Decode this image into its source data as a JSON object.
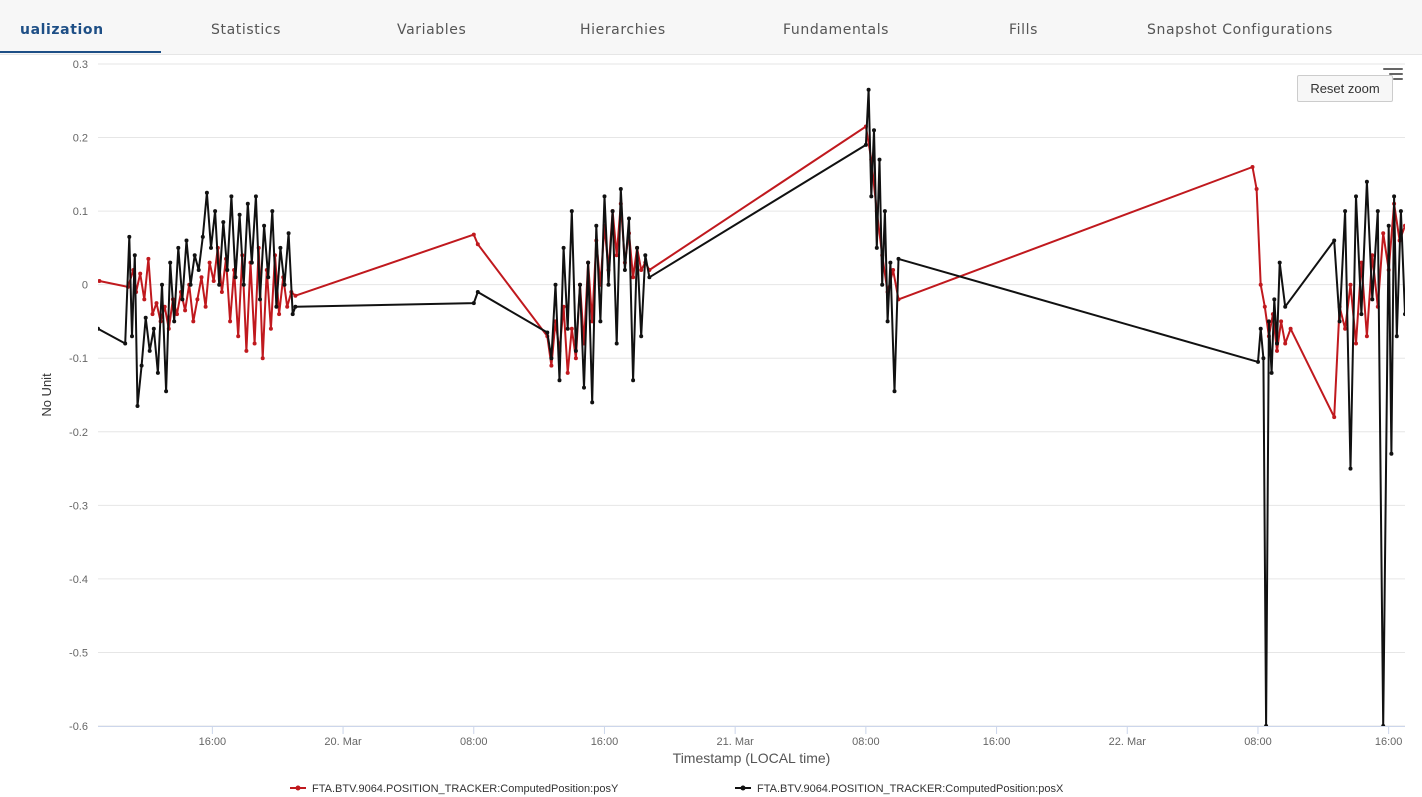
{
  "tabs": [
    {
      "label": "ualization",
      "active": true
    },
    {
      "label": "Statistics",
      "active": false
    },
    {
      "label": "Variables",
      "active": false
    },
    {
      "label": "Hierarchies",
      "active": false
    },
    {
      "label": "Fundamentals",
      "active": false
    },
    {
      "label": "Fills",
      "active": false
    },
    {
      "label": "Snapshot Configurations",
      "active": false
    }
  ],
  "toolbar": {
    "reset_zoom_label": "Reset zoom",
    "menu_icon": "hamburger-menu-icon"
  },
  "colors": {
    "accent": "#1e4f86",
    "series_y": "#c0191e",
    "series_x": "#111111",
    "grid": "#e6e6e6"
  },
  "chart_data": {
    "type": "line",
    "title": "",
    "xlabel": "Timestamp (LOCAL time)",
    "ylabel": "No Unit",
    "ylim": [
      -0.6,
      0.3
    ],
    "xlim": [
      "2021-03-19T09:00",
      "2021-03-22T17:00"
    ],
    "yticks": [
      "0.3",
      "0.2",
      "0.1",
      "0",
      "-0.1",
      "-0.2",
      "-0.3",
      "-0.4",
      "-0.5",
      "-0.6"
    ],
    "xticks": [
      "16:00",
      "20. Mar",
      "08:00",
      "16:00",
      "21. Mar",
      "08:00",
      "16:00",
      "22. Mar",
      "08:00",
      "16:00"
    ],
    "grid": true,
    "legend_position": "bottom",
    "series": [
      {
        "name": "FTA.BTV.9064.POSITION_TRACKER:ComputedPosition:posY",
        "color": "#c0191e",
        "x": [
          "2021-03-19T09:05",
          "2021-03-19T10:50",
          "2021-03-19T11:10",
          "2021-03-19T11:20",
          "2021-03-19T11:35",
          "2021-03-19T11:50",
          "2021-03-19T12:05",
          "2021-03-19T12:20",
          "2021-03-19T12:35",
          "2021-03-19T12:50",
          "2021-03-19T13:05",
          "2021-03-19T13:20",
          "2021-03-19T13:35",
          "2021-03-19T13:50",
          "2021-03-19T14:05",
          "2021-03-19T14:20",
          "2021-03-19T14:35",
          "2021-03-19T14:50",
          "2021-03-19T15:05",
          "2021-03-19T15:20",
          "2021-03-19T15:35",
          "2021-03-19T15:50",
          "2021-03-19T16:05",
          "2021-03-19T16:20",
          "2021-03-19T16:35",
          "2021-03-19T16:50",
          "2021-03-19T17:05",
          "2021-03-19T17:20",
          "2021-03-19T17:35",
          "2021-03-19T17:50",
          "2021-03-19T18:05",
          "2021-03-19T18:20",
          "2021-03-19T18:35",
          "2021-03-19T18:50",
          "2021-03-19T19:05",
          "2021-03-19T19:20",
          "2021-03-19T19:35",
          "2021-03-19T19:50",
          "2021-03-19T20:05",
          "2021-03-19T20:20",
          "2021-03-19T20:35",
          "2021-03-19T20:50",
          "2021-03-19T21:05",
          "2021-03-20T08:00",
          "2021-03-20T08:15",
          "2021-03-20T12:30",
          "2021-03-20T12:45",
          "2021-03-20T13:00",
          "2021-03-20T13:15",
          "2021-03-20T13:30",
          "2021-03-20T13:45",
          "2021-03-20T14:00",
          "2021-03-20T14:15",
          "2021-03-20T14:30",
          "2021-03-20T14:45",
          "2021-03-20T15:00",
          "2021-03-20T15:15",
          "2021-03-20T15:30",
          "2021-03-20T15:45",
          "2021-03-20T16:00",
          "2021-03-20T16:15",
          "2021-03-20T16:30",
          "2021-03-20T16:45",
          "2021-03-20T17:00",
          "2021-03-20T17:15",
          "2021-03-20T17:30",
          "2021-03-20T17:45",
          "2021-03-20T18:00",
          "2021-03-20T18:15",
          "2021-03-20T18:30",
          "2021-03-20T18:45",
          "2021-03-21T08:00",
          "2021-03-21T08:20",
          "2021-03-21T08:40",
          "2021-03-21T09:00",
          "2021-03-21T09:20",
          "2021-03-21T09:40",
          "2021-03-21T10:00",
          "2021-03-22T07:40",
          "2021-03-22T07:55",
          "2021-03-22T08:10",
          "2021-03-22T08:25",
          "2021-03-22T08:40",
          "2021-03-22T08:55",
          "2021-03-22T09:10",
          "2021-03-22T09:25",
          "2021-03-22T09:40",
          "2021-03-22T10:00",
          "2021-03-22T12:40",
          "2021-03-22T13:00",
          "2021-03-22T13:20",
          "2021-03-22T13:40",
          "2021-03-22T14:00",
          "2021-03-22T14:20",
          "2021-03-22T14:40",
          "2021-03-22T15:00",
          "2021-03-22T15:20",
          "2021-03-22T15:40",
          "2021-03-22T16:00",
          "2021-03-22T16:20",
          "2021-03-22T16:40",
          "2021-03-22T17:00"
        ],
        "y": [
          0.005,
          -0.003,
          0.02,
          -0.01,
          0.015,
          -0.02,
          0.035,
          -0.04,
          -0.025,
          -0.05,
          -0.03,
          -0.06,
          -0.02,
          -0.04,
          -0.01,
          -0.035,
          0.0,
          -0.05,
          -0.02,
          0.01,
          -0.03,
          0.03,
          0.005,
          0.05,
          -0.01,
          0.035,
          -0.05,
          0.02,
          -0.07,
          0.04,
          -0.09,
          0.03,
          -0.08,
          0.05,
          -0.1,
          0.02,
          -0.06,
          0.04,
          -0.04,
          0.01,
          -0.03,
          -0.01,
          -0.015,
          0.068,
          0.055,
          -0.07,
          -0.11,
          -0.05,
          -0.09,
          -0.03,
          -0.12,
          -0.06,
          -0.1,
          0.0,
          -0.08,
          0.03,
          -0.05,
          0.06,
          0.0,
          0.08,
          0.02,
          0.1,
          0.04,
          0.11,
          0.03,
          0.07,
          0.01,
          0.05,
          0.02,
          0.03,
          0.02,
          0.215,
          0.17,
          0.1,
          0.04,
          -0.01,
          0.02,
          -0.02,
          0.16,
          0.13,
          0.0,
          -0.03,
          -0.07,
          -0.04,
          -0.09,
          -0.05,
          -0.08,
          -0.06,
          -0.18,
          -0.03,
          -0.06,
          0.0,
          -0.08,
          0.03,
          -0.07,
          0.04,
          -0.03,
          0.07,
          0.02,
          0.11,
          0.06,
          0.08
        ]
      },
      {
        "name": "FTA.BTV.9064.POSITION_TRACKER:ComputedPosition:posX",
        "color": "#111111",
        "x": [
          "2021-03-19T09:00",
          "2021-03-19T10:40",
          "2021-03-19T10:55",
          "2021-03-19T11:05",
          "2021-03-19T11:15",
          "2021-03-19T11:25",
          "2021-03-19T11:40",
          "2021-03-19T11:55",
          "2021-03-19T12:10",
          "2021-03-19T12:25",
          "2021-03-19T12:40",
          "2021-03-19T12:55",
          "2021-03-19T13:10",
          "2021-03-19T13:25",
          "2021-03-19T13:40",
          "2021-03-19T13:55",
          "2021-03-19T14:10",
          "2021-03-19T14:25",
          "2021-03-19T14:40",
          "2021-03-19T14:55",
          "2021-03-19T15:10",
          "2021-03-19T15:25",
          "2021-03-19T15:40",
          "2021-03-19T15:55",
          "2021-03-19T16:10",
          "2021-03-19T16:25",
          "2021-03-19T16:40",
          "2021-03-19T16:55",
          "2021-03-19T17:10",
          "2021-03-19T17:25",
          "2021-03-19T17:40",
          "2021-03-19T17:55",
          "2021-03-19T18:10",
          "2021-03-19T18:25",
          "2021-03-19T18:40",
          "2021-03-19T18:55",
          "2021-03-19T19:10",
          "2021-03-19T19:25",
          "2021-03-19T19:40",
          "2021-03-19T19:55",
          "2021-03-19T20:10",
          "2021-03-19T20:25",
          "2021-03-19T20:40",
          "2021-03-19T20:55",
          "2021-03-19T21:05",
          "2021-03-20T08:00",
          "2021-03-20T08:15",
          "2021-03-20T12:30",
          "2021-03-20T12:45",
          "2021-03-20T13:00",
          "2021-03-20T13:15",
          "2021-03-20T13:30",
          "2021-03-20T13:45",
          "2021-03-20T14:00",
          "2021-03-20T14:15",
          "2021-03-20T14:30",
          "2021-03-20T14:45",
          "2021-03-20T15:00",
          "2021-03-20T15:15",
          "2021-03-20T15:30",
          "2021-03-20T15:45",
          "2021-03-20T16:00",
          "2021-03-20T16:15",
          "2021-03-20T16:30",
          "2021-03-20T16:45",
          "2021-03-20T17:00",
          "2021-03-20T17:15",
          "2021-03-20T17:30",
          "2021-03-20T17:45",
          "2021-03-20T18:00",
          "2021-03-20T18:15",
          "2021-03-20T18:30",
          "2021-03-20T18:45",
          "2021-03-21T08:00",
          "2021-03-21T08:10",
          "2021-03-21T08:20",
          "2021-03-21T08:30",
          "2021-03-21T08:40",
          "2021-03-21T08:50",
          "2021-03-21T09:00",
          "2021-03-21T09:10",
          "2021-03-21T09:20",
          "2021-03-21T09:30",
          "2021-03-21T09:45",
          "2021-03-21T10:00",
          "2021-03-22T08:00",
          "2021-03-22T08:10",
          "2021-03-22T08:20",
          "2021-03-22T08:30",
          "2021-03-22T08:40",
          "2021-03-22T08:50",
          "2021-03-22T09:00",
          "2021-03-22T09:10",
          "2021-03-22T09:20",
          "2021-03-22T09:40",
          "2021-03-22T12:40",
          "2021-03-22T13:00",
          "2021-03-22T13:20",
          "2021-03-22T13:40",
          "2021-03-22T14:00",
          "2021-03-22T14:20",
          "2021-03-22T14:40",
          "2021-03-22T15:00",
          "2021-03-22T15:20",
          "2021-03-22T15:40",
          "2021-03-22T16:00",
          "2021-03-22T16:10",
          "2021-03-22T16:20",
          "2021-03-22T16:30",
          "2021-03-22T16:45",
          "2021-03-22T17:00"
        ],
        "y": [
          -0.06,
          -0.08,
          0.065,
          -0.07,
          0.04,
          -0.165,
          -0.11,
          -0.045,
          -0.09,
          -0.06,
          -0.12,
          0.0,
          -0.145,
          0.03,
          -0.05,
          0.05,
          -0.02,
          0.06,
          0.0,
          0.04,
          0.02,
          0.065,
          0.125,
          0.05,
          0.1,
          0.0,
          0.085,
          0.02,
          0.12,
          0.01,
          0.095,
          0.0,
          0.11,
          0.03,
          0.12,
          -0.02,
          0.08,
          0.01,
          0.1,
          -0.03,
          0.05,
          0.0,
          0.07,
          -0.04,
          -0.03,
          -0.025,
          -0.01,
          -0.065,
          -0.1,
          0.0,
          -0.13,
          0.05,
          -0.06,
          0.1,
          -0.09,
          0.0,
          -0.14,
          0.03,
          -0.16,
          0.08,
          -0.05,
          0.12,
          0.0,
          0.1,
          -0.08,
          0.13,
          0.02,
          0.09,
          -0.13,
          0.05,
          -0.07,
          0.04,
          0.01,
          0.19,
          0.265,
          0.12,
          0.21,
          0.05,
          0.17,
          0.0,
          0.1,
          -0.05,
          0.03,
          -0.145,
          0.035,
          -0.105,
          -0.06,
          -0.1,
          -0.6,
          -0.05,
          -0.12,
          -0.02,
          -0.08,
          0.03,
          -0.03,
          0.06,
          -0.05,
          0.1,
          -0.25,
          0.12,
          -0.04,
          0.14,
          -0.02,
          0.1,
          -0.6,
          0.08,
          -0.23,
          0.12,
          -0.07,
          0.1,
          -0.04
        ]
      }
    ]
  }
}
